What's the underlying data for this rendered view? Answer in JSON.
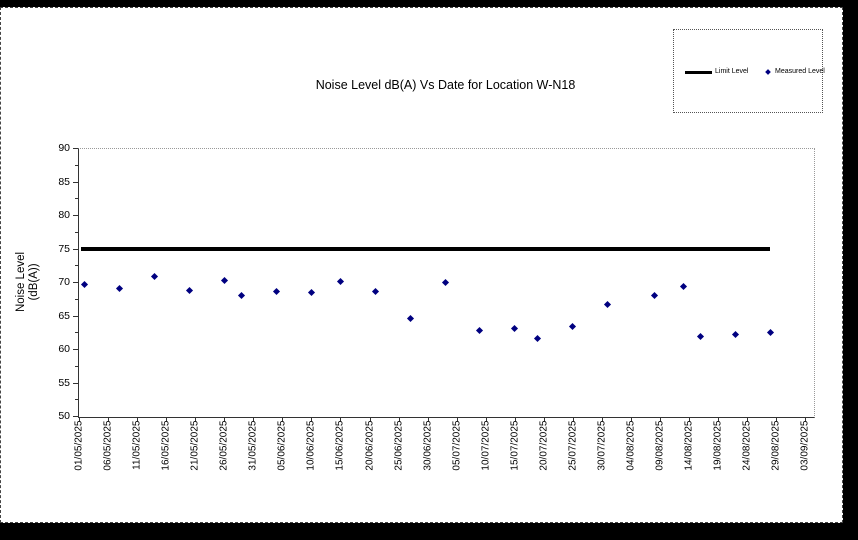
{
  "page": {
    "background": "#000000",
    "chart_background": "#ffffff"
  },
  "chart": {
    "title": "Noise Level dB(A) Vs Date for Location W-N18",
    "y_axis_title_line1": "Noise Level",
    "y_axis_title_line2": "(dB(A))",
    "legend": {
      "limit_label": "Limit Level",
      "measured_label": "Measured Level"
    },
    "colors": {
      "limit_line": "#000000",
      "marker": "#000080",
      "text": "#000000"
    }
  },
  "chart_data": {
    "type": "scatter",
    "title": "Noise Level dB(A) Vs Date for Location W-N18",
    "xlabel": "",
    "ylabel": "Noise Level (dB(A))",
    "ylim": [
      50,
      90
    ],
    "y_ticks": [
      90,
      85,
      80,
      75,
      70,
      65,
      60,
      55,
      50
    ],
    "x_tick_labels": [
      "01/05/2025",
      "06/05/2025",
      "11/05/2025",
      "16/05/2025",
      "21/05/2025",
      "26/05/2025",
      "31/05/2025",
      "05/06/2025",
      "10/06/2025",
      "15/06/2025",
      "20/06/2025",
      "25/06/2025",
      "30/06/2025",
      "05/07/2025",
      "10/07/2025",
      "15/07/2025",
      "20/07/2025",
      "25/07/2025",
      "30/07/2025",
      "04/08/2025",
      "09/08/2025",
      "14/08/2025",
      "19/08/2025",
      "24/08/2025",
      "29/08/2025",
      "03/09/2025"
    ],
    "x_tick_interval_days": 5,
    "grid": false,
    "legend_position": "top-right",
    "series": [
      {
        "name": "Limit Level",
        "type": "line",
        "value": 75
      },
      {
        "name": "Measured Level",
        "type": "scatter",
        "points": [
          {
            "date": "02/05/2025",
            "day": 1,
            "value": 69.7
          },
          {
            "date": "08/05/2025",
            "day": 7,
            "value": 69.1
          },
          {
            "date": "14/05/2025",
            "day": 13,
            "value": 70.8
          },
          {
            "date": "20/05/2025",
            "day": 19,
            "value": 68.8
          },
          {
            "date": "26/05/2025",
            "day": 25,
            "value": 70.2
          },
          {
            "date": "29/05/2025",
            "day": 28,
            "value": 68.0
          },
          {
            "date": "04/06/2025",
            "day": 34,
            "value": 68.6
          },
          {
            "date": "10/06/2025",
            "day": 40,
            "value": 68.5
          },
          {
            "date": "15/06/2025",
            "day": 45,
            "value": 70.1
          },
          {
            "date": "21/06/2025",
            "day": 51,
            "value": 68.6
          },
          {
            "date": "27/06/2025",
            "day": 57,
            "value": 64.5
          },
          {
            "date": "03/07/2025",
            "day": 63,
            "value": 70.0
          },
          {
            "date": "09/07/2025",
            "day": 69,
            "value": 62.8
          },
          {
            "date": "15/07/2025",
            "day": 75,
            "value": 63.0
          },
          {
            "date": "19/07/2025",
            "day": 79,
            "value": 61.5
          },
          {
            "date": "25/07/2025",
            "day": 85,
            "value": 63.3
          },
          {
            "date": "31/07/2025",
            "day": 91,
            "value": 66.6
          },
          {
            "date": "08/08/2025",
            "day": 99,
            "value": 68.0
          },
          {
            "date": "13/08/2025",
            "day": 104,
            "value": 69.4
          },
          {
            "date": "16/08/2025",
            "day": 107,
            "value": 61.9
          },
          {
            "date": "22/08/2025",
            "day": 113,
            "value": 62.1
          },
          {
            "date": "28/08/2025",
            "day": 119,
            "value": 62.4
          }
        ]
      }
    ]
  }
}
